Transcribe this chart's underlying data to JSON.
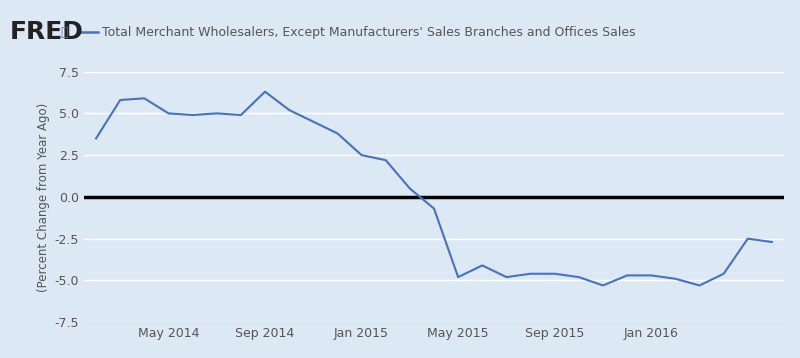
{
  "title": "Total Merchant Wholesalers, Except Manufacturers' Sales Branches and Offices Sales",
  "ylabel": "(Percent Change from Year Ago)",
  "background_color": "#dce9f5",
  "plot_bg_color": "#dce9f5",
  "line_color": "#4472c4",
  "zero_line_color": "#000000",
  "ylim": [
    -7.5,
    7.5
  ],
  "yticks": [
    -7.5,
    -5.0,
    -2.5,
    0.0,
    2.5,
    5.0,
    7.5
  ],
  "grid_color": "#ffffff",
  "x_labels": [
    "May 2014",
    "Sep 2014",
    "Jan 2015",
    "May 2015",
    "Sep 2015",
    "Jan 2016"
  ],
  "data_x": [
    0,
    1,
    2,
    3,
    4,
    5,
    6,
    7,
    8,
    9,
    10,
    11,
    12,
    13,
    14,
    15,
    16,
    17,
    18,
    19,
    20,
    21,
    22,
    23,
    24,
    25,
    26,
    27,
    28
  ],
  "data_y": [
    3.5,
    5.8,
    5.9,
    5.0,
    4.9,
    5.0,
    4.9,
    6.3,
    5.2,
    4.5,
    3.8,
    2.5,
    2.2,
    0.5,
    -0.7,
    -4.8,
    -4.1,
    -4.8,
    -4.6,
    -4.6,
    -4.8,
    -5.3,
    -4.7,
    -4.7,
    -4.9,
    -5.3,
    -4.6,
    -2.5,
    -2.7
  ],
  "x_tick_positions": [
    3,
    7,
    11,
    15,
    19,
    23
  ],
  "line_width": 1.5
}
